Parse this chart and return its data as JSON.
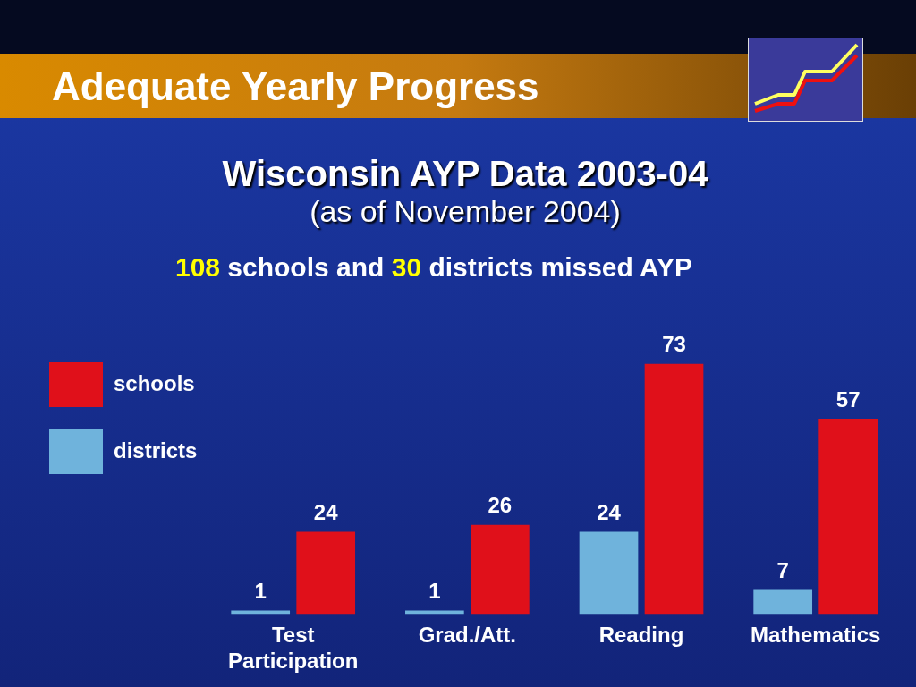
{
  "chart_data": {
    "type": "bar",
    "title": "Adequate Yearly Progress",
    "subtitle": "Wisconsin AYP Data 2003-04\n(as of November 2004)",
    "annotations": [
      "108 schools and 30 districts missed AYP"
    ],
    "categories": [
      "Test Participation",
      "Grad./Att.",
      "Reading",
      "Mathematics"
    ],
    "series": [
      {
        "name": "districts",
        "color": "#6fb3dc",
        "values": [
          1,
          1,
          24,
          7
        ]
      },
      {
        "name": "schools",
        "color": "#e0101a",
        "values": [
          24,
          26,
          73,
          57
        ]
      }
    ],
    "data_labels": true,
    "legend": "left",
    "grid": false
  }
}
